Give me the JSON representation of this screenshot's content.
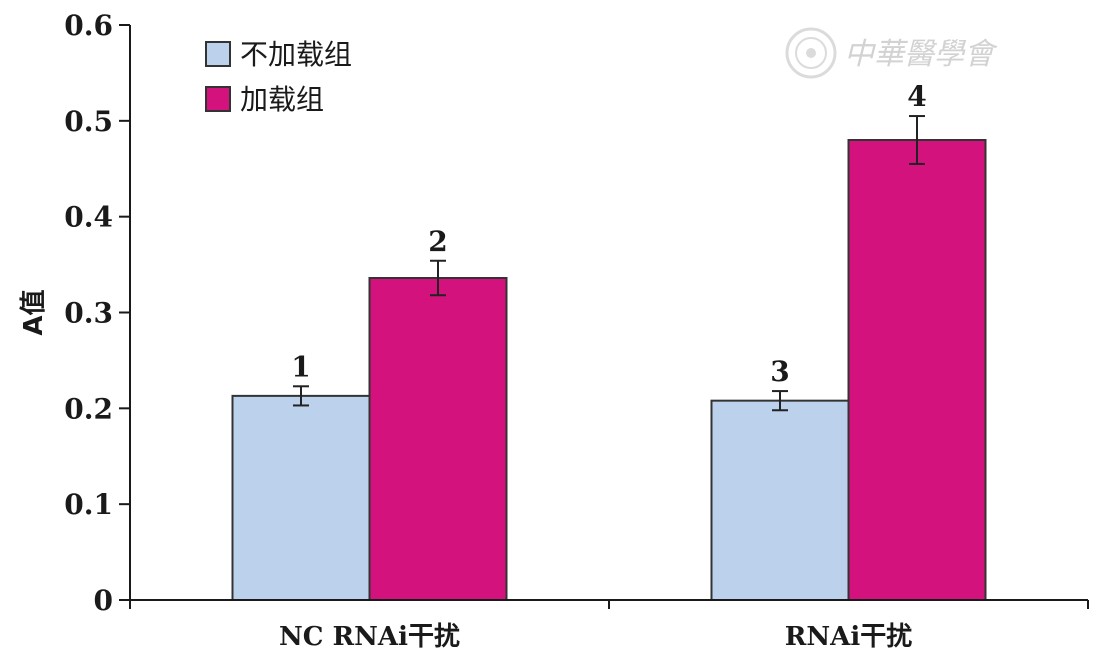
{
  "chart_data": {
    "type": "bar",
    "categories": [
      "NC RNAi干扰",
      "RNAi干扰"
    ],
    "series": [
      {
        "name": "不加载组",
        "values": [
          0.213,
          0.208
        ],
        "errors": [
          0.01,
          0.01
        ],
        "labels": [
          "1",
          "3"
        ]
      },
      {
        "name": "加载组",
        "values": [
          0.336,
          0.48
        ],
        "errors": [
          0.018,
          0.025
        ],
        "labels": [
          "2",
          "4"
        ]
      }
    ],
    "title": "",
    "xlabel": "",
    "ylabel": "A值",
    "ylim": [
      0,
      0.6
    ],
    "yticks": [
      "0",
      "0.1",
      "0.2",
      "0.3",
      "0.4",
      "0.5",
      "0.6"
    ],
    "grid": false,
    "legend": "top-left",
    "colors": {
      "series0": "#bcd2ec",
      "series1": "#d3127e",
      "bar_stroke": "#333333",
      "axis": "#1a1a1a"
    }
  },
  "watermark": {
    "text": "中華醫學會"
  }
}
